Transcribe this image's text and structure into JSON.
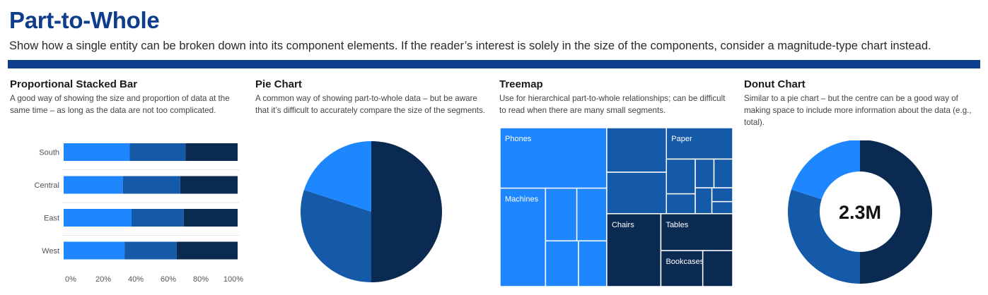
{
  "header": {
    "title": "Part-to-Whole",
    "subtitle": "Show how a single entity can be broken down into its component elements. If the reader’s interest is solely in the size of the components, consider a magnitude-type chart instead."
  },
  "colors": {
    "rule": "#0e3d8c",
    "light": "#1e87ff",
    "mid": "#145aa8",
    "dark": "#0b2a52"
  },
  "panels": [
    {
      "title": "Proportional Stacked Bar",
      "desc": "A good way of showing the size and proportion of data at the same time – as long as the data are not too complicated."
    },
    {
      "title": "Pie Chart",
      "desc": "A common way of showing part-to-whole data – but be aware that it’s difficult to accurately compare the size of the segments."
    },
    {
      "title": "Treemap",
      "desc": "Use for hierarchical part-to-whole relationships; can be difficult to read when there are many small segments."
    },
    {
      "title": "Donut Chart",
      "desc": "Similar to a pie chart – but the centre can be a good way of making space to include more information about the data (e.g., total)."
    }
  ],
  "chart_data": [
    {
      "type": "bar",
      "stacked": "100%",
      "orientation": "horizontal",
      "categories": [
        "South",
        "Central",
        "East",
        "West"
      ],
      "series": [
        {
          "values": [
            38,
            34,
            39,
            35
          ]
        },
        {
          "values": [
            32,
            33,
            30,
            30
          ]
        },
        {
          "values": [
            30,
            33,
            31,
            35
          ]
        }
      ],
      "xlim": [
        0,
        100
      ],
      "xticks": [
        "0%",
        "20%",
        "40%",
        "60%",
        "80%",
        "100%"
      ]
    },
    {
      "type": "pie",
      "values": [
        50,
        30,
        20
      ]
    },
    {
      "type": "treemap",
      "groups": [
        {
          "color": "light",
          "items": [
            {
              "label": "Phones",
              "value": 18.0
            },
            {
              "label": "Machines",
              "value": 12.5
            },
            {
              "label": "",
              "value": 4.2
            },
            {
              "label": "",
              "value": 4.6
            },
            {
              "label": "",
              "value": 4.4
            },
            {
              "label": "",
              "value": 3.6
            }
          ]
        },
        {
          "color": "dark",
          "items": [
            {
              "label": "Chairs",
              "value": 11.0
            },
            {
              "label": "Tables",
              "value": 7.4
            },
            {
              "label": "Bookcases",
              "value": 4.2
            },
            {
              "label": "",
              "value": 3.0
            }
          ]
        },
        {
          "color": "mid",
          "items": [
            {
              "label": "",
              "value": 7.4
            },
            {
              "label": "",
              "value": 6.9
            },
            {
              "label": "Paper",
              "value": 5.8
            },
            {
              "label": "",
              "value": 2.8
            },
            {
              "label": "",
              "value": 1.6
            },
            {
              "label": "",
              "value": 1.5
            },
            {
              "label": "",
              "value": 1.5
            },
            {
              "label": "",
              "value": 1.2
            },
            {
              "label": "",
              "value": 0.8
            },
            {
              "label": "",
              "value": 0.7
            }
          ]
        }
      ]
    },
    {
      "type": "pie",
      "donut": true,
      "values": [
        50,
        30,
        20
      ],
      "center_label": "2.3M"
    }
  ]
}
